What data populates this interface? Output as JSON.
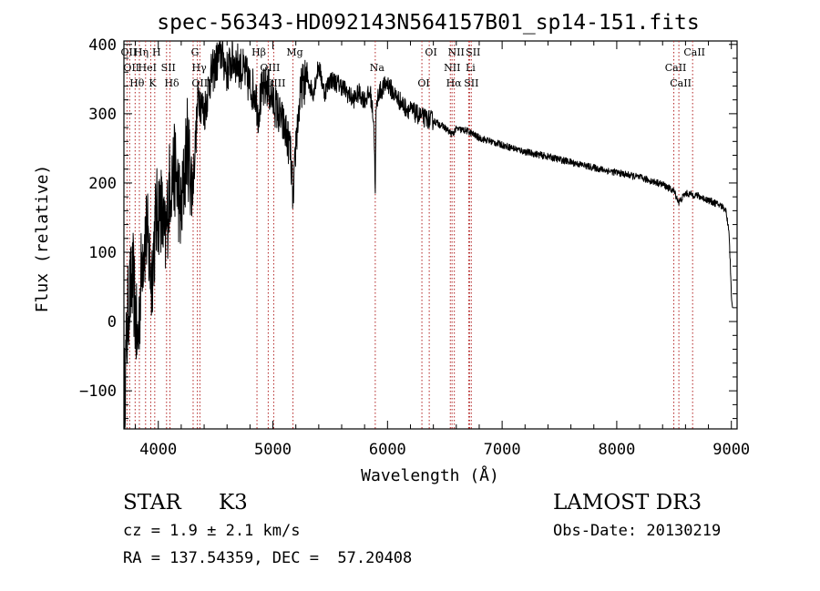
{
  "chart_data": {
    "type": "line",
    "title": "spec-56343-HD092143N564157B01_sp14-151.fits",
    "xlabel": "Wavelength (Å)",
    "ylabel": "Flux (relative)",
    "xlim": [
      3700,
      9050
    ],
    "ylim": [
      -155,
      405
    ],
    "x_ticks": [
      4000,
      5000,
      6000,
      7000,
      8000,
      9000
    ],
    "y_ticks": [
      -100,
      0,
      100,
      200,
      300,
      400
    ],
    "x_tick_labels": [
      "4000",
      "5000",
      "6000",
      "7000",
      "8000",
      "9000"
    ],
    "y_tick_labels": [
      "−100",
      "0",
      "100",
      "200",
      "300",
      "400"
    ],
    "grid": false,
    "line_color": "#000000",
    "marker_color": "#b22222",
    "series": [
      {
        "name": "spectrum",
        "x": [
          3700,
          3740,
          3780,
          3820,
          3860,
          3900,
          3940,
          3980,
          4020,
          4060,
          4100,
          4150,
          4200,
          4250,
          4300,
          4350,
          4400,
          4450,
          4500,
          4550,
          4600,
          4650,
          4700,
          4750,
          4800,
          4850,
          4870,
          4900,
          4950,
          5000,
          5050,
          5100,
          5150,
          5180,
          5200,
          5250,
          5300,
          5350,
          5400,
          5450,
          5500,
          5550,
          5600,
          5650,
          5700,
          5750,
          5800,
          5850,
          5880,
          5893,
          5900,
          5920,
          5950,
          6000,
          6050,
          6100,
          6150,
          6200,
          6250,
          6300,
          6400,
          6500,
          6563,
          6600,
          6700,
          6800,
          7000,
          7200,
          7400,
          7600,
          7800,
          8000,
          8200,
          8400,
          8500,
          8542,
          8600,
          8700,
          8800,
          8900,
          8950,
          8980,
          9000,
          9010
        ],
        "values": [
          -120,
          30,
          60,
          -40,
          100,
          130,
          60,
          150,
          170,
          110,
          200,
          220,
          150,
          260,
          190,
          330,
          300,
          350,
          370,
          390,
          360,
          380,
          370,
          360,
          340,
          330,
          300,
          330,
          340,
          320,
          300,
          280,
          250,
          170,
          260,
          340,
          350,
          330,
          370,
          330,
          350,
          345,
          340,
          330,
          320,
          330,
          320,
          330,
          290,
          195,
          300,
          330,
          335,
          345,
          330,
          320,
          310,
          305,
          300,
          295,
          290,
          280,
          270,
          278,
          275,
          265,
          255,
          245,
          238,
          230,
          222,
          215,
          208,
          198,
          188,
          172,
          185,
          182,
          175,
          168,
          162,
          130,
          40,
          20
        ]
      }
    ],
    "line_markers": [
      {
        "wavelength": 3727,
        "label": "OII"
      },
      {
        "wavelength": 3750,
        "label": "OII"
      },
      {
        "wavelength": 3798,
        "label": "Hθ"
      },
      {
        "wavelength": 3835,
        "label": "Hη"
      },
      {
        "wavelength": 3889,
        "label": "HeI"
      },
      {
        "wavelength": 3934,
        "label": "K"
      },
      {
        "wavelength": 3969,
        "label": "H"
      },
      {
        "wavelength": 4072,
        "label": "SII"
      },
      {
        "wavelength": 4102,
        "label": "Hδ"
      },
      {
        "wavelength": 4304,
        "label": "G"
      },
      {
        "wavelength": 4341,
        "label": "Hγ"
      },
      {
        "wavelength": 4363,
        "label": "OIII"
      },
      {
        "wavelength": 4861,
        "label": "Hβ"
      },
      {
        "wavelength": 4959,
        "label": "OIII"
      },
      {
        "wavelength": 5007,
        "label": "OIII"
      },
      {
        "wavelength": 5175,
        "label": "Mg"
      },
      {
        "wavelength": 5893,
        "label": "Na"
      },
      {
        "wavelength": 6300,
        "label": "OI"
      },
      {
        "wavelength": 6364,
        "label": "OI"
      },
      {
        "wavelength": 6548,
        "label": "NII"
      },
      {
        "wavelength": 6563,
        "label": "Hα"
      },
      {
        "wavelength": 6583,
        "label": "NII"
      },
      {
        "wavelength": 6708,
        "label": "Li"
      },
      {
        "wavelength": 6716,
        "label": "SII"
      },
      {
        "wavelength": 6731,
        "label": "SII"
      },
      {
        "wavelength": 8498,
        "label": "CaII"
      },
      {
        "wavelength": 8542,
        "label": "CaII"
      },
      {
        "wavelength": 8662,
        "label": "CaII"
      }
    ]
  },
  "footer": {
    "object_class": "STAR",
    "subclass": "K3",
    "survey": "LAMOST DR3",
    "redshift": "cz = 1.9 ± 2.1 km/s",
    "obs_date": "Obs-Date: 20130219",
    "coords": "RA = 137.54359, DEC =  57.20408"
  }
}
